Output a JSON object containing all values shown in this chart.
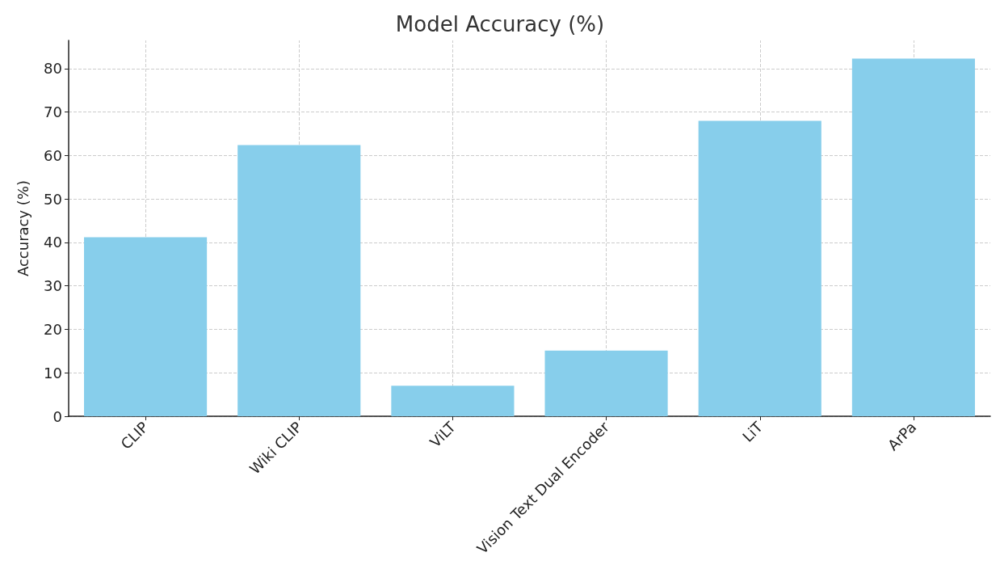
{
  "chart_data": {
    "type": "bar",
    "title": "Model Accuracy (%)",
    "ylabel": "Accuracy (%)",
    "categories": [
      "CLIP",
      "Wiki CLIP",
      "ViLT",
      "Vision Text Dual Encoder",
      "LiT",
      "ArPa"
    ],
    "values": [
      41.2,
      62.4,
      7.0,
      15.1,
      68.0,
      82.3
    ],
    "color": "#87ceeb",
    "ylim": [
      0,
      86.5
    ],
    "yticks": [
      0,
      10,
      20,
      30,
      40,
      50,
      60,
      70,
      80
    ],
    "grid": true
  }
}
